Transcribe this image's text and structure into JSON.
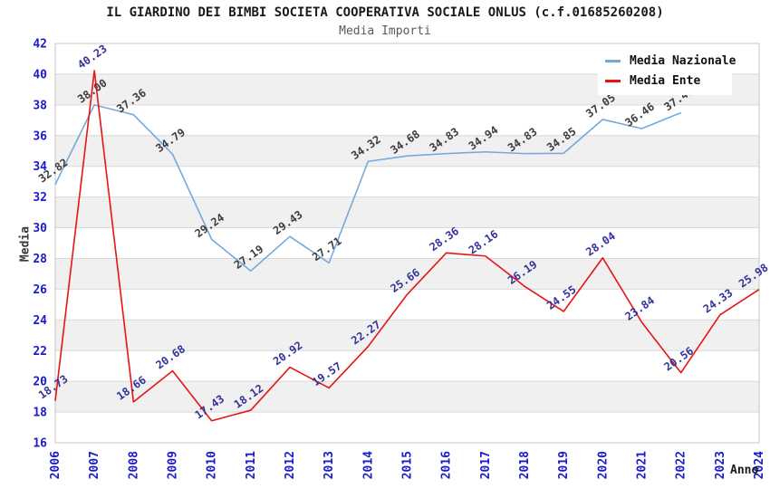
{
  "chart_data": {
    "type": "line",
    "title": "IL GIARDINO DEI BIMBI SOCIETA COOPERATIVA SOCIALE ONLUS (c.f.01685260208)",
    "subtitle": "Media Importi",
    "xlabel": "Anno",
    "ylabel": "Media",
    "x": [
      2006,
      2007,
      2008,
      2009,
      2010,
      2011,
      2012,
      2013,
      2014,
      2015,
      2016,
      2017,
      2018,
      2019,
      2020,
      2021,
      2022,
      2023,
      2024
    ],
    "ylim": [
      16,
      42
    ],
    "ytick_step": 2,
    "grid": "horizontal-bands-alternating",
    "legend_position": "top-right",
    "series": [
      {
        "name": "Media Nazionale",
        "color": "#74a9dc",
        "label_color": "#3d3d3d",
        "values": [
          32.82,
          38.0,
          37.36,
          34.79,
          29.24,
          27.19,
          29.43,
          27.71,
          34.32,
          34.68,
          34.83,
          34.94,
          34.83,
          34.85,
          37.05,
          36.46,
          37.49,
          null,
          null
        ]
      },
      {
        "name": "Media Ente",
        "color": "#e81414",
        "label_color": "#333399",
        "values": [
          18.73,
          40.23,
          18.66,
          20.68,
          17.43,
          18.12,
          20.92,
          19.57,
          22.27,
          25.66,
          28.36,
          28.16,
          26.19,
          24.55,
          28.04,
          23.84,
          20.56,
          24.33,
          25.98
        ]
      }
    ],
    "style_colors": {
      "tick_label": "#1a1acf",
      "band_fill": "#f0f0f0",
      "gridline": "#d9d9d9",
      "plot_border": "#c6c6c6"
    }
  }
}
